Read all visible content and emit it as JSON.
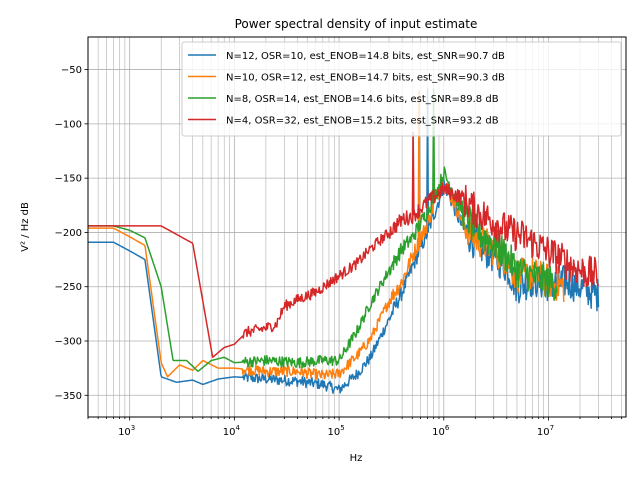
{
  "chart_data": {
    "type": "line",
    "title": "Power spectral density of input estimate",
    "xlabel": "Hz",
    "ylabel": "V² / Hz dB",
    "xscale": "log",
    "xlim": [
      400,
      55000000
    ],
    "ylim": [
      -370,
      -20
    ],
    "x_ticks": [
      1000,
      10000,
      100000,
      1000000,
      10000000
    ],
    "x_tick_labels": [
      {
        "base": "10",
        "exp": "3"
      },
      {
        "base": "10",
        "exp": "4"
      },
      {
        "base": "10",
        "exp": "5"
      },
      {
        "base": "10",
        "exp": "6"
      },
      {
        "base": "10",
        "exp": "7"
      }
    ],
    "y_ticks": [
      -50,
      -100,
      -150,
      -200,
      -250,
      -300,
      -350
    ],
    "y_tick_labels": [
      "−50",
      "−100",
      "−150",
      "−200",
      "−250",
      "−300",
      "−350"
    ],
    "grid": true,
    "legend_position": "top-right",
    "series": [
      {
        "name": "N=12, OSR=10, est_ENOB=14.8 bits, est_SNR=90.7 dB",
        "color": "#1f77b4",
        "points": [
          [
            400,
            -209
          ],
          [
            700,
            -209
          ],
          [
            1000,
            -217
          ],
          [
            1400,
            -225
          ],
          [
            2000,
            -333
          ],
          [
            2800,
            -338
          ],
          [
            4000,
            -336
          ],
          [
            5000,
            -340
          ],
          [
            7000,
            -335
          ],
          [
            10000,
            -333
          ],
          [
            20000,
            -335
          ],
          [
            40000,
            -337
          ],
          [
            70000,
            -340
          ],
          [
            100000,
            -345
          ],
          [
            150000,
            -330
          ],
          [
            200000,
            -315
          ],
          [
            300000,
            -280
          ],
          [
            400000,
            -255
          ],
          [
            500000,
            -232
          ],
          [
            700000,
            -200
          ],
          [
            900000,
            -170
          ],
          [
            1000000,
            -155
          ],
          [
            1100000,
            -163
          ],
          [
            1500000,
            -195
          ],
          [
            2000000,
            -210
          ],
          [
            3000000,
            -222
          ],
          [
            4000000,
            -232
          ],
          [
            5000000,
            -250
          ],
          [
            7000000,
            -244
          ],
          [
            10000000,
            -248
          ],
          [
            15000000,
            -245
          ],
          [
            20000000,
            -250
          ],
          [
            30000000,
            -258
          ]
        ],
        "tones": [
          [
            700000,
            -68
          ]
        ]
      },
      {
        "name": "N=10, OSR=12, est_ENOB=14.7 bits, est_SNR=90.3 dB",
        "color": "#ff7f0e",
        "points": [
          [
            400,
            -196
          ],
          [
            700,
            -196
          ],
          [
            1000,
            -204
          ],
          [
            1400,
            -212
          ],
          [
            2000,
            -320
          ],
          [
            2300,
            -333
          ],
          [
            3000,
            -322
          ],
          [
            4000,
            -327
          ],
          [
            5000,
            -318
          ],
          [
            7000,
            -325
          ],
          [
            10000,
            -325
          ],
          [
            20000,
            -328
          ],
          [
            40000,
            -328
          ],
          [
            70000,
            -332
          ],
          [
            100000,
            -330
          ],
          [
            150000,
            -313
          ],
          [
            200000,
            -298
          ],
          [
            300000,
            -263
          ],
          [
            400000,
            -245
          ],
          [
            500000,
            -222
          ],
          [
            700000,
            -192
          ],
          [
            900000,
            -160
          ],
          [
            1000000,
            -153
          ],
          [
            1100000,
            -160
          ],
          [
            1500000,
            -190
          ],
          [
            2000000,
            -205
          ],
          [
            3000000,
            -215
          ],
          [
            4000000,
            -225
          ],
          [
            5000000,
            -240
          ],
          [
            7000000,
            -238
          ],
          [
            10000000,
            -245
          ],
          [
            14000000,
            -250
          ]
        ],
        "tones": [
          [
            580000,
            -70
          ]
        ]
      },
      {
        "name": "N=8, OSR=14, est_ENOB=14.6 bits, est_SNR=89.8 dB",
        "color": "#2ca02c",
        "points": [
          [
            400,
            -194
          ],
          [
            700,
            -194
          ],
          [
            1000,
            -198
          ],
          [
            1400,
            -205
          ],
          [
            2000,
            -250
          ],
          [
            2600,
            -318
          ],
          [
            3500,
            -318
          ],
          [
            4500,
            -328
          ],
          [
            6000,
            -318
          ],
          [
            8000,
            -315
          ],
          [
            10000,
            -320
          ],
          [
            20000,
            -318
          ],
          [
            40000,
            -320
          ],
          [
            70000,
            -318
          ],
          [
            100000,
            -318
          ],
          [
            150000,
            -290
          ],
          [
            200000,
            -265
          ],
          [
            300000,
            -235
          ],
          [
            400000,
            -215
          ],
          [
            500000,
            -205
          ],
          [
            700000,
            -180
          ],
          [
            900000,
            -158
          ],
          [
            1000000,
            -145
          ],
          [
            1100000,
            -153
          ],
          [
            1500000,
            -180
          ],
          [
            2000000,
            -198
          ],
          [
            3000000,
            -210
          ],
          [
            4000000,
            -222
          ],
          [
            5000000,
            -235
          ],
          [
            7000000,
            -240
          ],
          [
            10000000,
            -245
          ],
          [
            12000000,
            -248
          ]
        ],
        "tones": [
          [
            800000,
            -68
          ]
        ]
      },
      {
        "name": "N=4, OSR=32, est_ENOB=15.2 bits, est_SNR=93.2 dB",
        "color": "#d62728",
        "points": [
          [
            400,
            -194
          ],
          [
            1000,
            -194
          ],
          [
            2000,
            -194
          ],
          [
            4000,
            -210
          ],
          [
            6200,
            -315
          ],
          [
            8000,
            -306
          ],
          [
            10000,
            -303
          ],
          [
            13000,
            -292
          ],
          [
            20000,
            -288
          ],
          [
            25000,
            -285
          ],
          [
            30000,
            -268
          ],
          [
            40000,
            -262
          ],
          [
            60000,
            -255
          ],
          [
            100000,
            -240
          ],
          [
            150000,
            -228
          ],
          [
            200000,
            -215
          ],
          [
            300000,
            -200
          ],
          [
            400000,
            -188
          ],
          [
            500000,
            -185
          ],
          [
            700000,
            -172
          ],
          [
            1000000,
            -160
          ],
          [
            1500000,
            -168
          ],
          [
            2000000,
            -180
          ],
          [
            3000000,
            -190
          ],
          [
            4000000,
            -198
          ],
          [
            6000000,
            -205
          ],
          [
            10000000,
            -218
          ],
          [
            15000000,
            -228
          ],
          [
            20000000,
            -235
          ],
          [
            30000000,
            -240
          ]
        ],
        "tones": [
          [
            510000,
            -108
          ]
        ]
      }
    ]
  }
}
